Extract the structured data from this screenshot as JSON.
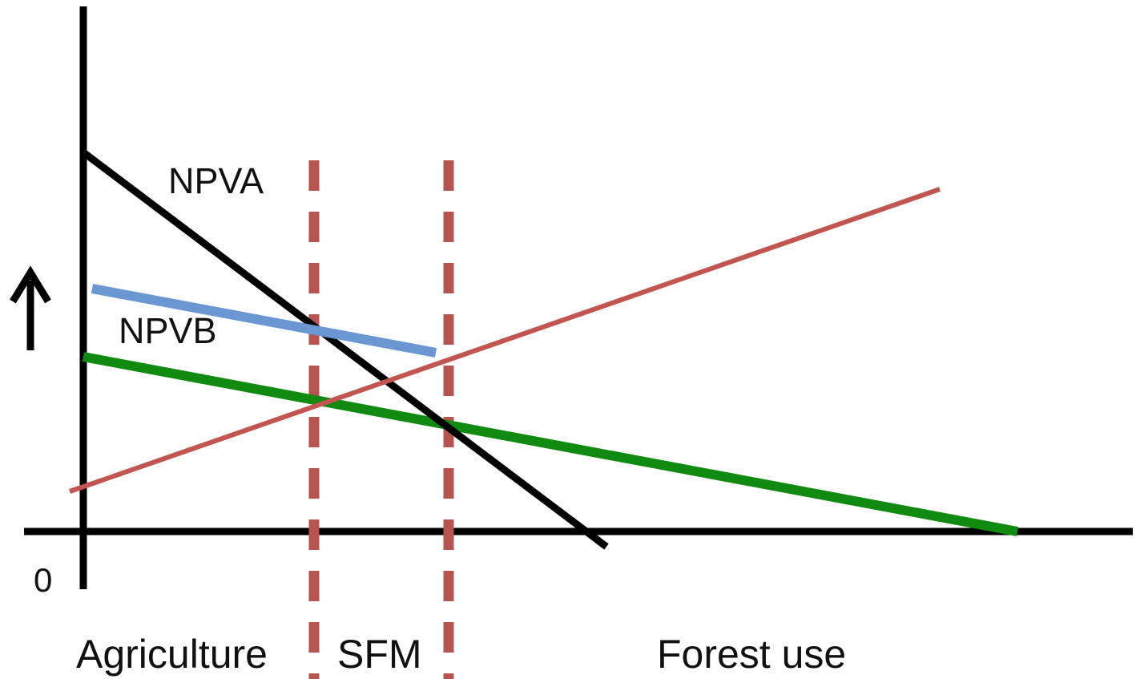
{
  "labels": {
    "npva": "NPVA",
    "npvb": "NPVB",
    "origin": "0",
    "agriculture": "Agriculture",
    "sfm": "SFM",
    "forest_use": "Forest use"
  },
  "icons": {
    "y_axis_arrow": "up-arrow-icon"
  },
  "colors": {
    "axes": "#000000",
    "npva_line": "#000000",
    "npvb_line": "#6a96d2",
    "green_line": "#118a11",
    "red_line": "#c25550",
    "boundary_dashes": "#b85450",
    "text": "#111111"
  }
}
